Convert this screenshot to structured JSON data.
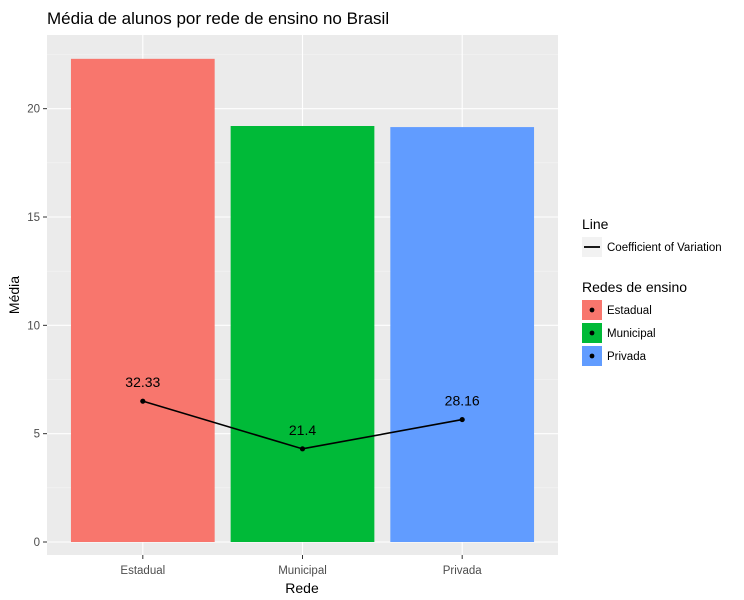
{
  "chart_data": {
    "type": "bar",
    "title": "Média de alunos por rede de ensino no Brasil",
    "xlabel": "Rede",
    "ylabel": "Média",
    "categories": [
      "Estadual",
      "Municipal",
      "Privada"
    ],
    "values": [
      22.3,
      19.2,
      19.15
    ],
    "bar_colors": [
      "#F8766D",
      "#00BA38",
      "#619CFF"
    ],
    "ylim": [
      -0.6,
      23.4
    ],
    "yticks": [
      0,
      5,
      10,
      15,
      20
    ],
    "grid": true,
    "panel_background": "#EBEBEB",
    "line_series": {
      "name": "Coefficient of Variation",
      "values": [
        6.5,
        4.3,
        5.65
      ],
      "labels": [
        "32.33",
        "21.4",
        "28.16"
      ],
      "color": "#000000"
    },
    "legends": [
      {
        "title": "Line",
        "items": [
          {
            "label": "Coefficient of Variation",
            "kind": "line",
            "color": "#000000"
          }
        ]
      },
      {
        "title": "Redes de ensino",
        "items": [
          {
            "label": "Estadual",
            "kind": "fill",
            "color": "#F8766D"
          },
          {
            "label": "Municipal",
            "kind": "fill",
            "color": "#00BA38"
          },
          {
            "label": "Privada",
            "kind": "fill",
            "color": "#619CFF"
          }
        ]
      }
    ],
    "legend_position": "right"
  }
}
